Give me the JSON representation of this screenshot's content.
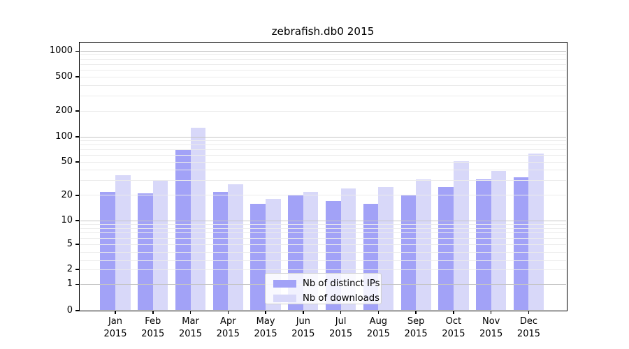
{
  "title": "zebrafish.db0 2015",
  "colors": {
    "distinct_ips_bar": "#a2a2f7",
    "downloads_bar": "#d8d8f9",
    "major_grid": "#c4c4c4",
    "minor_grid": "#ebebeb",
    "spine": "#000000",
    "background": "#ffffff"
  },
  "chart_data": {
    "type": "bar",
    "title": "zebrafish.db0 2015",
    "x_months": [
      "Jan",
      "Feb",
      "Mar",
      "Apr",
      "May",
      "Jun",
      "Jul",
      "Aug",
      "Sep",
      "Oct",
      "Nov",
      "Dec"
    ],
    "year": "2015",
    "categories": [
      "Jan 2015",
      "Feb 2015",
      "Mar 2015",
      "Apr 2015",
      "May 2015",
      "Jun 2015",
      "Jul 2015",
      "Aug 2015",
      "Sep 2015",
      "Oct 2015",
      "Nov 2015",
      "Dec 2015"
    ],
    "series": [
      {
        "name": "Nb of distinct IPs",
        "color": "#a2a2f7",
        "values": [
          22,
          21,
          70,
          22,
          16,
          20,
          17,
          16,
          20,
          25,
          31,
          33
        ]
      },
      {
        "name": "Nb of downloads",
        "color": "#d8d8f9",
        "values": [
          35,
          30,
          127,
          27,
          18,
          22,
          24,
          25,
          31,
          51,
          39,
          63
        ]
      }
    ],
    "y_axis": {
      "scale": "symlog-like",
      "tick_values": [
        0,
        1,
        2,
        5,
        10,
        20,
        50,
        100,
        200,
        500,
        1000
      ],
      "tick_labels": [
        "0",
        "1",
        "2",
        "5",
        "10",
        "20",
        "50",
        "100",
        "200",
        "500",
        "1000"
      ],
      "ylim": [
        0,
        1400
      ]
    },
    "grid": {
      "enabled": true,
      "major_values": [
        1,
        10,
        100,
        1000
      ],
      "minor_values": [
        2,
        3,
        4,
        5,
        6,
        7,
        8,
        9,
        20,
        30,
        40,
        50,
        60,
        70,
        80,
        90,
        200,
        300,
        400,
        500,
        600,
        700,
        800,
        900
      ]
    },
    "legend_position": "lower center",
    "xlabel": "",
    "ylabel": ""
  }
}
